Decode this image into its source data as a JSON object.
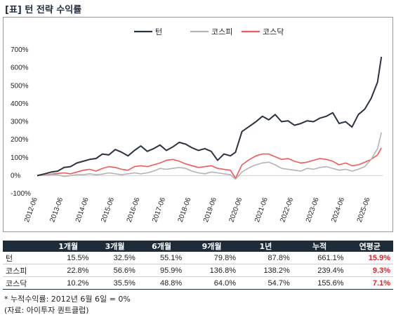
{
  "title": "[표] 턴 전략 수익률",
  "chart_data": {
    "type": "line",
    "legend_position": "top-center",
    "y_tick_labels": [
      "700%",
      "600%",
      "500%",
      "400%",
      "300%",
      "200%",
      "100%",
      "0%",
      "-100%"
    ],
    "ylim": [
      -100,
      700
    ],
    "x_tick_labels": [
      "2012-06",
      "2013-06",
      "2014-06",
      "2015-06",
      "2016-06",
      "2017-06",
      "2018-06",
      "2019-06",
      "2020-06",
      "2021-06",
      "2022-06",
      "2023-06",
      "2024-06",
      "2025-06"
    ],
    "x": [
      2012.45,
      2012.75,
      2013.0,
      2013.25,
      2013.5,
      2013.75,
      2014.0,
      2014.25,
      2014.5,
      2014.75,
      2015.0,
      2015.25,
      2015.5,
      2015.75,
      2016.0,
      2016.25,
      2016.5,
      2016.75,
      2017.0,
      2017.25,
      2017.5,
      2017.75,
      2018.0,
      2018.25,
      2018.5,
      2018.75,
      2019.0,
      2019.25,
      2019.5,
      2019.75,
      2020.0,
      2020.2,
      2020.45,
      2020.75,
      2021.0,
      2021.25,
      2021.5,
      2021.75,
      2022.0,
      2022.25,
      2022.5,
      2022.75,
      2023.0,
      2023.25,
      2023.5,
      2023.75,
      2024.0,
      2024.25,
      2024.5,
      2024.75,
      2025.0,
      2025.25,
      2025.5,
      2025.75,
      2025.9
    ],
    "series": [
      {
        "name": "턴",
        "color": "#2b3340",
        "values": [
          0,
          10,
          20,
          25,
          45,
          50,
          70,
          80,
          90,
          95,
          120,
          115,
          145,
          130,
          110,
          140,
          165,
          135,
          150,
          170,
          140,
          160,
          185,
          175,
          155,
          140,
          150,
          135,
          85,
          120,
          110,
          130,
          245,
          275,
          300,
          330,
          310,
          340,
          300,
          305,
          280,
          290,
          305,
          300,
          320,
          330,
          350,
          290,
          300,
          270,
          340,
          370,
          430,
          520,
          661
        ]
      },
      {
        "name": "코스피",
        "color": "#b4b4b4",
        "values": [
          0,
          2,
          5,
          5,
          -5,
          0,
          5,
          5,
          10,
          5,
          8,
          15,
          10,
          5,
          10,
          15,
          10,
          15,
          25,
          40,
          35,
          40,
          45,
          40,
          25,
          15,
          10,
          20,
          15,
          10,
          5,
          -20,
          20,
          45,
          60,
          70,
          75,
          60,
          40,
          35,
          30,
          25,
          40,
          35,
          45,
          50,
          40,
          30,
          35,
          25,
          35,
          50,
          90,
          150,
          239
        ]
      },
      {
        "name": "코스닥",
        "color": "#f05a5a",
        "values": [
          0,
          3,
          8,
          12,
          15,
          10,
          20,
          30,
          35,
          25,
          40,
          50,
          45,
          35,
          30,
          50,
          55,
          50,
          60,
          70,
          85,
          90,
          80,
          65,
          55,
          45,
          50,
          55,
          40,
          35,
          30,
          -15,
          60,
          90,
          110,
          120,
          120,
          105,
          90,
          95,
          80,
          70,
          75,
          85,
          95,
          90,
          80,
          60,
          70,
          55,
          60,
          75,
          90,
          115,
          155
        ]
      }
    ]
  },
  "table": {
    "headers": [
      "",
      "1개월",
      "3개월",
      "6개월",
      "9개월",
      "1년",
      "누적",
      "연평균"
    ],
    "rows": [
      {
        "name": "턴",
        "values": [
          "15.5%",
          "32.5%",
          "55.1%",
          "79.8%",
          "87.8%",
          "661.1%"
        ],
        "annual": "15.9%"
      },
      {
        "name": "코스피",
        "values": [
          "22.8%",
          "56.6%",
          "95.9%",
          "136.8%",
          "138.2%",
          "239.4%"
        ],
        "annual": "9.3%"
      },
      {
        "name": "코스닥",
        "values": [
          "10.2%",
          "35.5%",
          "48.8%",
          "64.0%",
          "54.7%",
          "155.6%"
        ],
        "annual": "7.1%"
      }
    ]
  },
  "notes": {
    "footnote": "* 누적수익률: 2012년 6월 6일 = 0%",
    "source": "(자료: 아이투자 퀀트클럽)"
  }
}
